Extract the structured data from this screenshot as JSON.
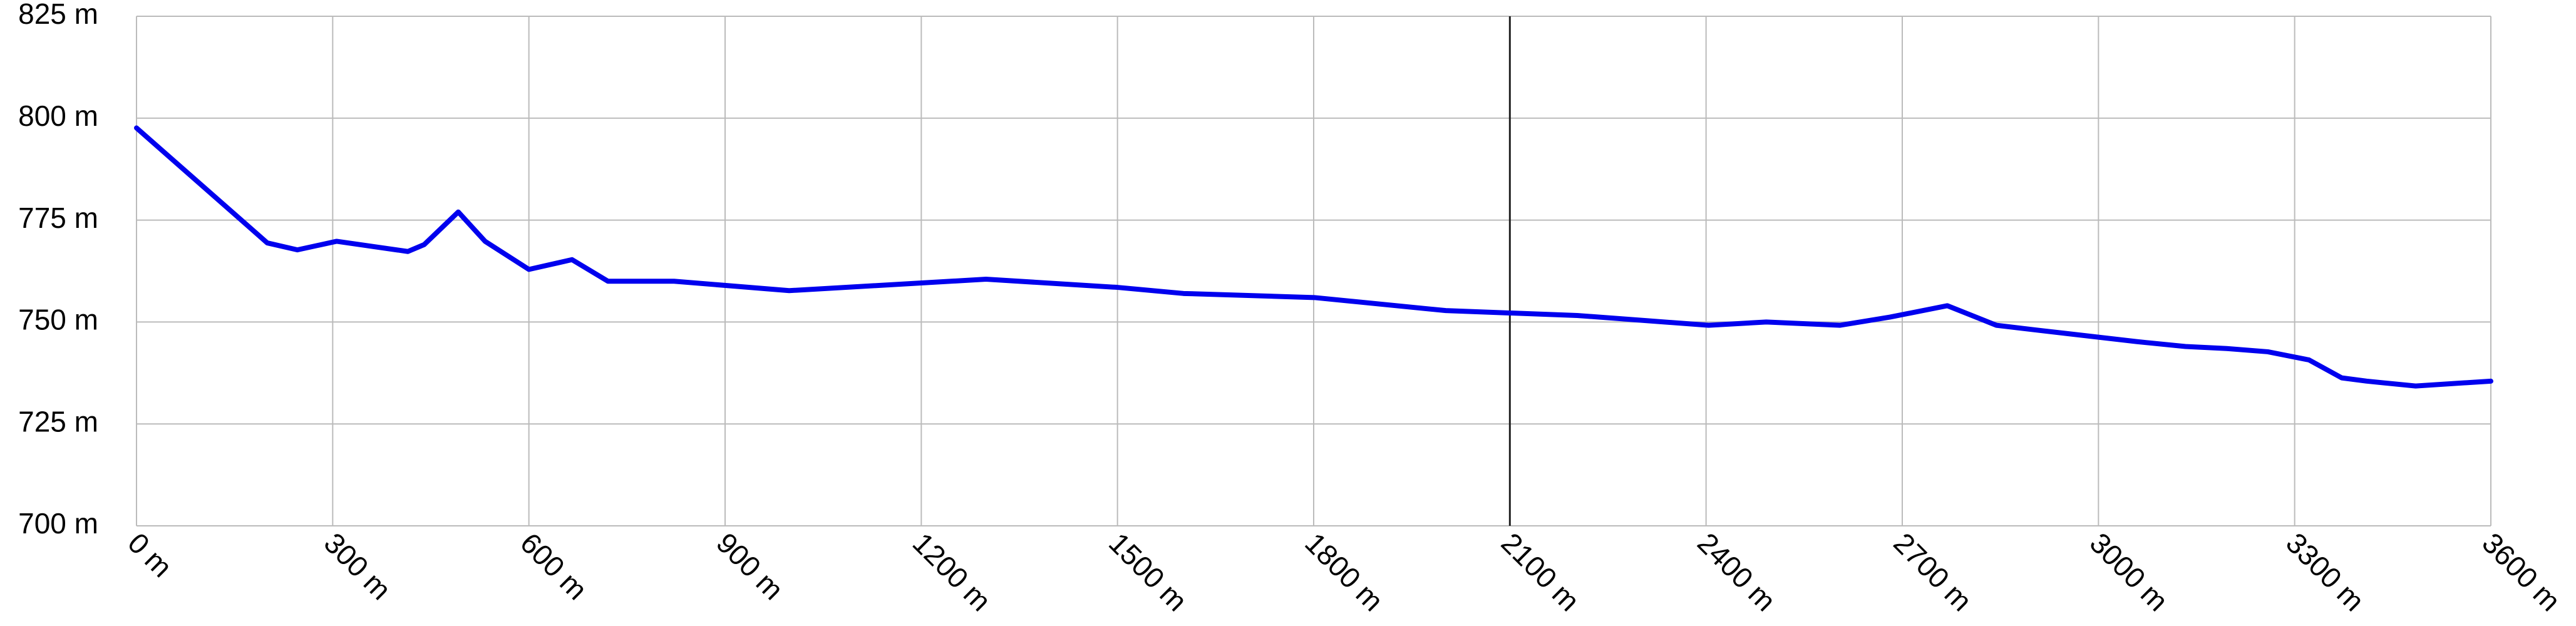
{
  "chart_data": {
    "type": "line",
    "x": [
      0,
      200,
      246,
      306,
      415,
      440,
      492,
      533,
      600,
      666,
      721,
      822,
      998,
      1299,
      1500,
      1601,
      1801,
      2002,
      2203,
      2404,
      2492,
      2605,
      2681,
      2769,
      2844,
      2907,
      3058,
      3133,
      3196,
      3259,
      3322,
      3372,
      3410,
      3485,
      3600
    ],
    "series": [
      {
        "color": "#0000ee",
        "values": [
          797.6,
          769.4,
          767.7,
          769.8,
          767.3,
          769,
          777,
          769.8,
          762.9,
          765.3,
          760,
          760,
          757.7,
          760.5,
          758.5,
          757,
          756,
          752.8,
          751.6,
          749.2,
          750,
          749.2,
          751.2,
          754,
          749.2,
          748,
          745.2,
          744,
          743.5,
          742.7,
          740.7,
          736.3,
          735.5,
          734.3,
          735.5
        ]
      }
    ],
    "xlim": [
      0,
      3600
    ],
    "xticks": [
      {
        "value": 0,
        "label": "0 m"
      },
      {
        "value": 300,
        "label": "300 m"
      },
      {
        "value": 600,
        "label": "600 m"
      },
      {
        "value": 900,
        "label": "900 m"
      },
      {
        "value": 1200,
        "label": "1200 m"
      },
      {
        "value": 1500,
        "label": "1500 m"
      },
      {
        "value": 1800,
        "label": "1800 m"
      },
      {
        "value": 2100,
        "label": "2100 m"
      },
      {
        "value": 2400,
        "label": "2400 m"
      },
      {
        "value": 2700,
        "label": "2700 m"
      },
      {
        "value": 3000,
        "label": "3000 m"
      },
      {
        "value": 3300,
        "label": "3300 m"
      },
      {
        "value": 3600,
        "label": "3600 m"
      }
    ],
    "ylim": [
      700,
      825
    ],
    "yticks": [
      {
        "value": 700,
        "label": "700 m"
      },
      {
        "value": 725,
        "label": "725 m"
      },
      {
        "value": 750,
        "label": "750 m"
      },
      {
        "value": 775,
        "label": "775 m"
      },
      {
        "value": 800,
        "label": "800 m"
      },
      {
        "value": 825,
        "label": "825 m"
      }
    ],
    "grid": true,
    "marker_x": 2100
  }
}
